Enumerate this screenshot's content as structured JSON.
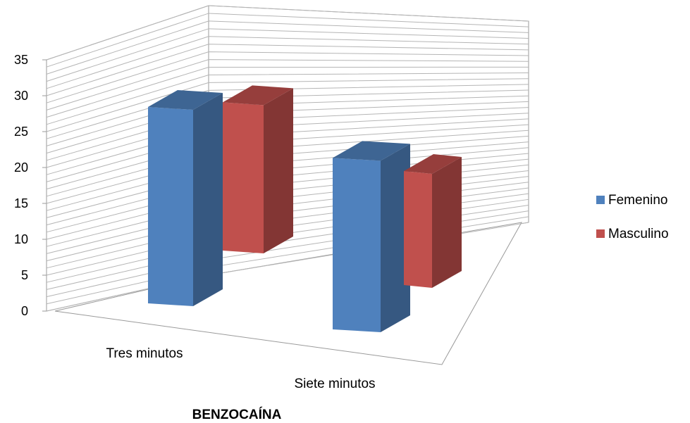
{
  "chart_data": {
    "type": "bar",
    "style": "3d-clustered-column",
    "categories": [
      "Tres minutos",
      "Siete minutos"
    ],
    "series": [
      {
        "name": "Femenino",
        "values": [
          31,
          21
        ],
        "color": "#4F81BD"
      },
      {
        "name": "Masculino",
        "values": [
          27,
          18
        ],
        "color": "#C0504D"
      }
    ],
    "title": "",
    "xlabel": "BENZOCAÍNA",
    "ylabel": "",
    "ylim": [
      0,
      35
    ],
    "yticks": [
      "0",
      "5",
      "10",
      "15",
      "20",
      "25",
      "30",
      "35"
    ],
    "grid": true,
    "legend_position": "right"
  }
}
